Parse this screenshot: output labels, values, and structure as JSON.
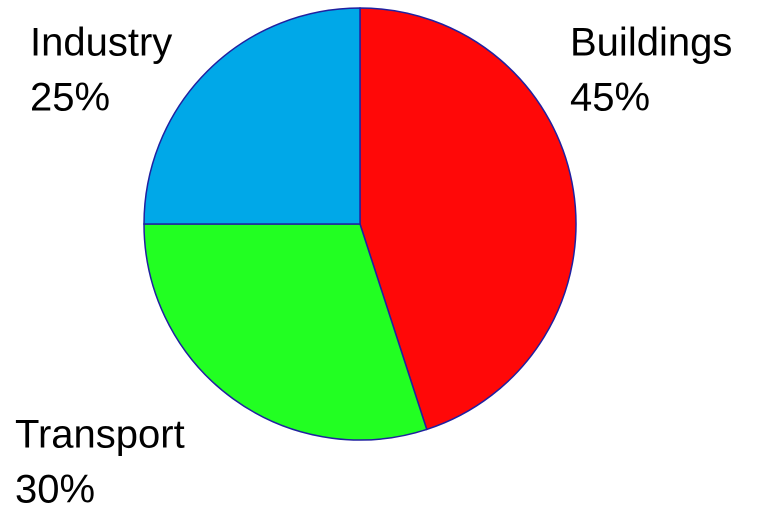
{
  "chart_data": {
    "type": "pie",
    "categories": [
      "Buildings",
      "Transport",
      "Industry"
    ],
    "values": [
      45,
      30,
      25
    ],
    "value_labels": [
      "45%",
      "30%",
      "25%"
    ],
    "colors": [
      "#ff0808",
      "#22ff22",
      "#00a8e8"
    ],
    "start_angle": 90,
    "direction": "clockwise"
  }
}
